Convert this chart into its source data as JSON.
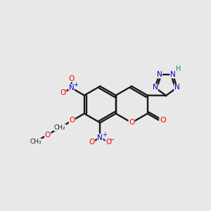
{
  "bg_color": "#e8e8e8",
  "bond_color": "#1a1a1a",
  "O_color": "#ff0000",
  "N_color": "#0000cc",
  "H_color": "#2a8080",
  "figsize": [
    3.0,
    3.0
  ],
  "dpi": 100,
  "xlim": [
    0,
    10
  ],
  "ylim": [
    0,
    10
  ]
}
